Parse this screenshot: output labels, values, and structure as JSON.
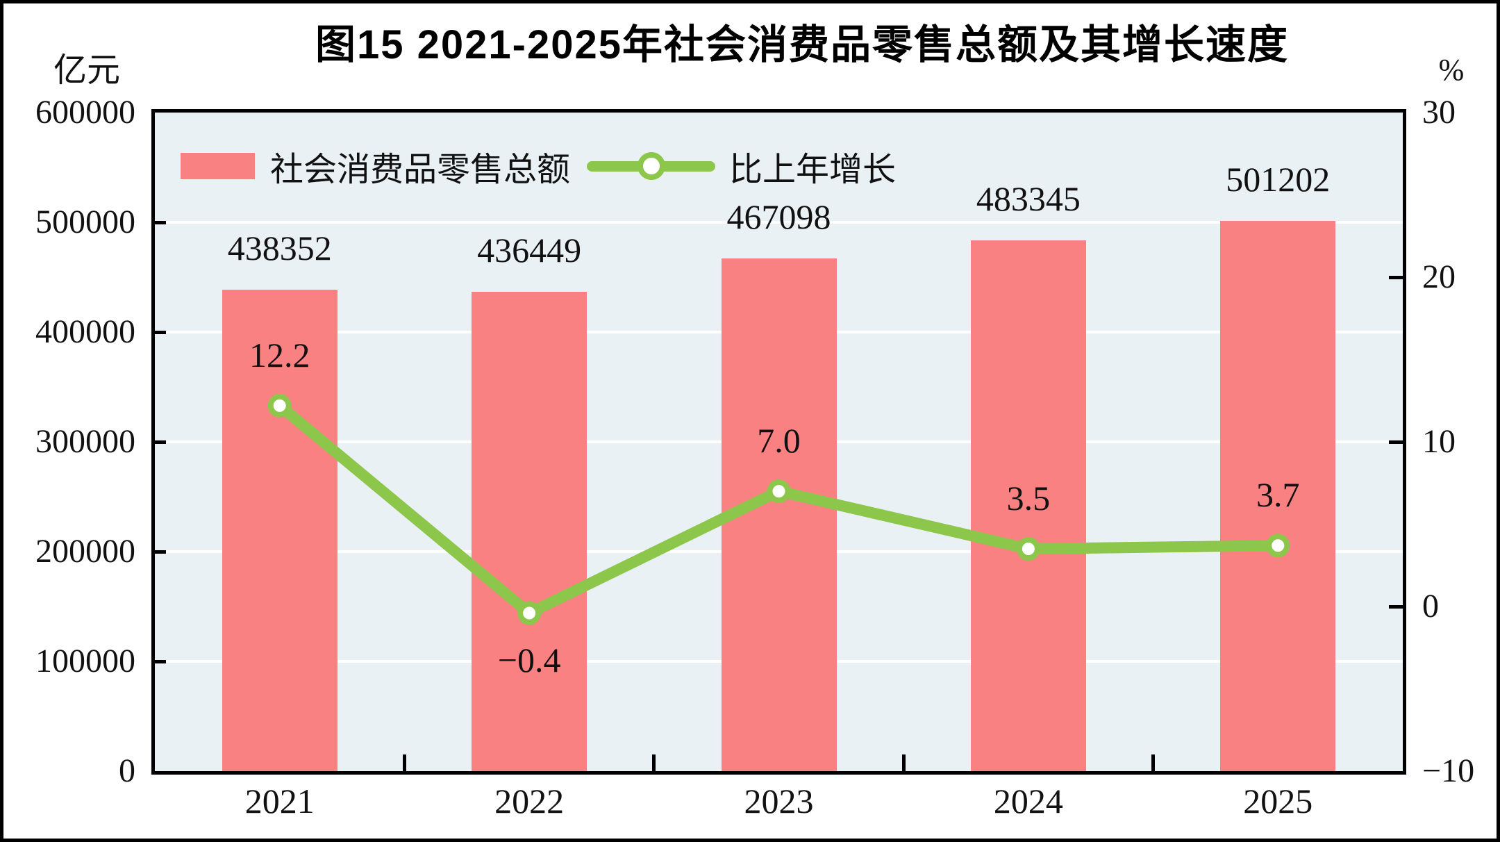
{
  "page": {
    "title": "图15  2021-2025年社会消费品零售总额及其增长速度"
  },
  "colors": {
    "bar": "#FA8181",
    "line": "#8CC64A",
    "marker_fill": "#FFFFFF",
    "plot_background": "#EAF1F5",
    "gridline": "#FFFFFF",
    "axis": "#000000",
    "text": "#111111"
  },
  "chart_data": {
    "type": "bar",
    "subtype": "bar+line combo",
    "title": "图15  2021-2025年社会消费品零售总额及其增长速度",
    "categories": [
      "2021",
      "2022",
      "2023",
      "2024",
      "2025"
    ],
    "series": [
      {
        "name": "社会消费品零售总额",
        "type": "bar",
        "axis": "left",
        "unit": "亿元",
        "values": [
          438352,
          436449,
          467098,
          483345,
          501202
        ],
        "labels": [
          "438352",
          "436449",
          "467098",
          "483345",
          "501202"
        ]
      },
      {
        "name": "比上年增长",
        "type": "line",
        "axis": "right",
        "unit": "%",
        "values": [
          12.2,
          -0.4,
          7.0,
          3.5,
          3.7
        ],
        "labels": [
          "12.2",
          "−0.4",
          "7.0",
          "3.5",
          "3.7"
        ]
      }
    ],
    "left_axis": {
      "label": "亿元",
      "min": 0,
      "max": 600000,
      "ticks": [
        600000,
        500000,
        400000,
        300000,
        200000,
        100000,
        0
      ],
      "tick_labels": [
        "600000",
        "500000",
        "400000",
        "300000",
        "200000",
        "100000",
        "0"
      ]
    },
    "right_axis": {
      "label": "%",
      "min": -10,
      "max": 30,
      "ticks": [
        30,
        20,
        10,
        0,
        -10
      ],
      "tick_labels": [
        "30",
        "20",
        "10",
        "0",
        "−10"
      ]
    },
    "grid": true,
    "legend_position": "top-left-inside"
  }
}
